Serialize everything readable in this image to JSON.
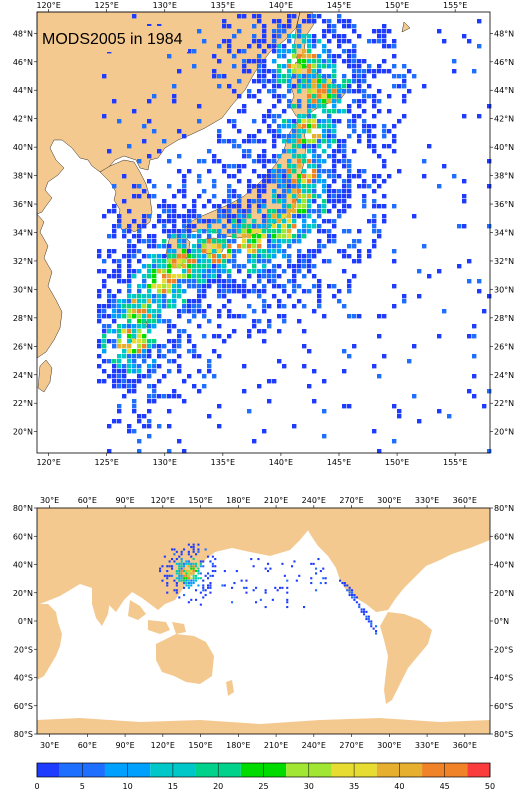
{
  "map_top": {
    "title": "MODS2005 in 1984",
    "lon_labels": [
      "120°E",
      "125°E",
      "130°E",
      "135°E",
      "140°E",
      "145°E",
      "150°E",
      "155°E"
    ],
    "lat_labels": [
      "20°N",
      "22°N",
      "24°N",
      "26°N",
      "28°N",
      "30°N",
      "32°N",
      "34°N",
      "36°N",
      "38°N",
      "40°N",
      "42°N",
      "44°N",
      "46°N",
      "48°N"
    ],
    "lon_range": [
      119,
      158
    ],
    "lat_range": [
      18.5,
      49.5
    ]
  },
  "map_bottom": {
    "lon_labels": [
      "30°E",
      "60°E",
      "90°E",
      "120°E",
      "150°E",
      "180°E",
      "210°E",
      "240°E",
      "270°E",
      "300°E",
      "330°E",
      "360°E"
    ],
    "lat_labels": [
      "80°S",
      "60°S",
      "40°S",
      "20°S",
      "0°N",
      "20°N",
      "40°N",
      "60°N",
      "80°N"
    ],
    "lon_range": [
      20,
      380
    ],
    "lat_range": [
      -80,
      80
    ]
  },
  "colorbar": {
    "labels": [
      "0",
      "5",
      "10",
      "15",
      "20",
      "25",
      "30",
      "35",
      "40",
      "45",
      "50"
    ],
    "colors": [
      "#1e3cff",
      "#1e6eff",
      "#00a0ff",
      "#00c8c8",
      "#00d28c",
      "#00dc00",
      "#a0e632",
      "#e6dc32",
      "#e6af2d",
      "#f08228",
      "#fa3c3c"
    ]
  },
  "colors": {
    "land": "#f4c990",
    "ocean": "#ffffff",
    "frame": "#000000"
  }
}
